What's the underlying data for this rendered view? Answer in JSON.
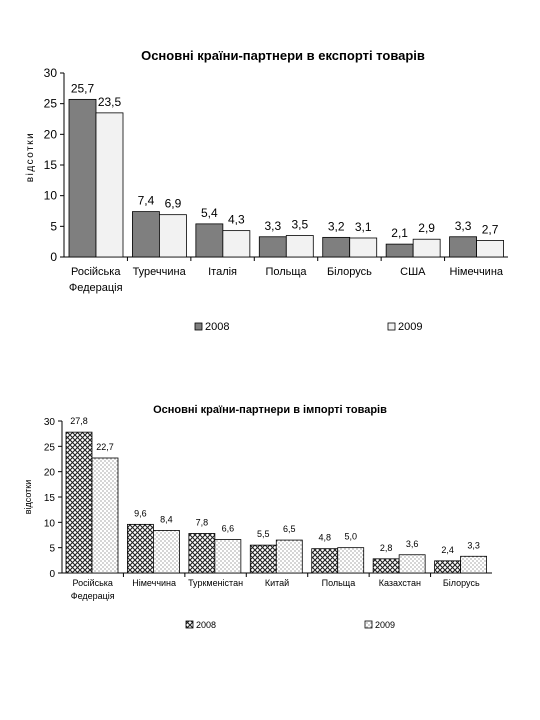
{
  "chart_data": [
    {
      "type": "bar",
      "title": "Основні країни-партнери в експорті товарів",
      "ylabel": "відсотки",
      "xlabel": "",
      "ylim": [
        0,
        30
      ],
      "yticks": [
        0,
        5,
        10,
        15,
        20,
        25,
        30
      ],
      "categories": [
        "Російська Федерація",
        "Туреччина",
        "Італія",
        "Польща",
        "Білорусь",
        "США",
        "Німеччина"
      ],
      "series": [
        {
          "name": "2008",
          "values": [
            25.7,
            7.4,
            5.4,
            3.3,
            3.2,
            2.1,
            3.3
          ],
          "labels": [
            "25,7",
            "7,4",
            "5,4",
            "3,3",
            "3,2",
            "2,1",
            "3,3"
          ]
        },
        {
          "name": "2009",
          "values": [
            23.5,
            6.9,
            4.3,
            3.5,
            3.1,
            2.9,
            2.7
          ],
          "labels": [
            "23,5",
            "6,9",
            "4,3",
            "3,5",
            "3,1",
            "2,9",
            "2,7"
          ]
        }
      ],
      "grid": false,
      "legend": "bottom",
      "colors": {
        "2008": "#7f7f7f",
        "2009": "#f2f2f2"
      }
    },
    {
      "type": "bar",
      "title": "Основні країни-партнери в імпорті товарів",
      "ylabel": "відсотки",
      "xlabel": "",
      "ylim": [
        0,
        30
      ],
      "yticks": [
        0,
        5,
        10,
        15,
        20,
        25,
        30
      ],
      "categories": [
        "Російська Федерація",
        "Німеччина",
        "Туркменістан",
        "Китай",
        "Польща",
        "Казахстан",
        "Білорусь"
      ],
      "series": [
        {
          "name": "2008",
          "values": [
            27.8,
            9.6,
            7.8,
            5.5,
            4.8,
            2.8,
            2.4
          ],
          "labels": [
            "27,8",
            "9,6",
            "7,8",
            "5,5",
            "4,8",
            "2,8",
            "2,4"
          ]
        },
        {
          "name": "2009",
          "values": [
            22.7,
            8.4,
            6.6,
            6.5,
            5.0,
            3.6,
            3.3
          ],
          "labels": [
            "22,7",
            "8,4",
            "6,6",
            "6,5",
            "5,0",
            "3,6",
            "3,3"
          ]
        }
      ],
      "grid": false,
      "legend": "bottom",
      "colors": {
        "2008": "crosshatch",
        "2009": "dotted"
      }
    }
  ]
}
